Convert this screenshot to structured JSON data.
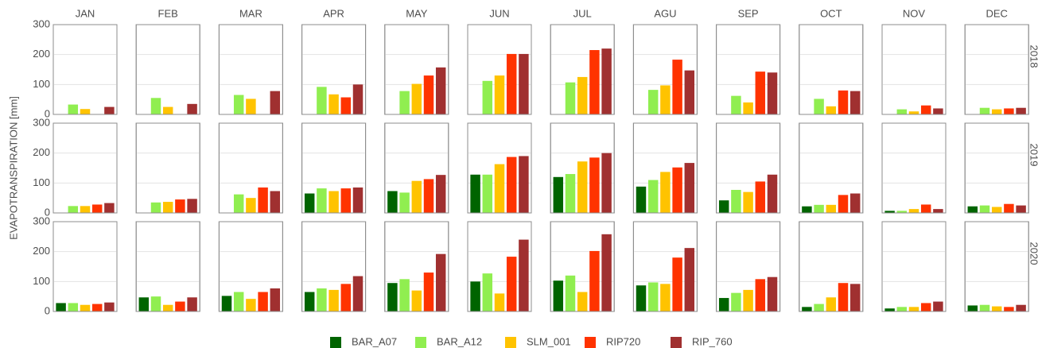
{
  "chart_data": {
    "type": "bar",
    "ylabel": "EVAPOTRANSPIRATION [mm]",
    "columns": [
      "JAN",
      "FEB",
      "MAR",
      "APR",
      "MAY",
      "JUN",
      "JUL",
      "AGU",
      "SEP",
      "OCT",
      "NOV",
      "DEC"
    ],
    "rows": [
      "2018",
      "2019",
      "2020"
    ],
    "ylim": [
      0,
      300
    ],
    "yticks": [
      0,
      100,
      200,
      300
    ],
    "grid": true,
    "legend": "bottom",
    "series": [
      {
        "name": "BAR_A07",
        "color": "#006400",
        "values": [
          [
            null,
            null,
            null,
            null,
            null,
            null,
            null,
            null,
            null,
            null,
            null,
            null
          ],
          [
            null,
            null,
            null,
            65,
            73,
            128,
            120,
            88,
            42,
            22,
            7,
            22
          ],
          [
            28,
            47,
            52,
            65,
            95,
            100,
            103,
            87,
            45,
            15,
            10,
            20
          ]
        ]
      },
      {
        "name": "BAR_A12",
        "color": "#90ee50",
        "values": [
          [
            33,
            55,
            65,
            92,
            78,
            112,
            107,
            82,
            62,
            52,
            17,
            22
          ],
          [
            23,
            35,
            62,
            82,
            68,
            128,
            130,
            110,
            77,
            27,
            7,
            25
          ],
          [
            28,
            50,
            65,
            77,
            108,
            127,
            120,
            97,
            62,
            25,
            15,
            22
          ]
        ]
      },
      {
        "name": "SLM_001",
        "color": "#ffc300",
        "values": [
          [
            18,
            25,
            52,
            67,
            102,
            130,
            125,
            97,
            40,
            27,
            10,
            17
          ],
          [
            23,
            37,
            50,
            73,
            107,
            163,
            172,
            137,
            70,
            27,
            13,
            20
          ],
          [
            22,
            22,
            42,
            72,
            70,
            60,
            65,
            92,
            72,
            47,
            15,
            17
          ]
        ]
      },
      {
        "name": "RIP720",
        "color": "#ff3300",
        "values": [
          [
            null,
            null,
            null,
            57,
            130,
            202,
            215,
            183,
            143,
            80,
            30,
            20
          ],
          [
            28,
            45,
            85,
            82,
            113,
            187,
            185,
            152,
            105,
            60,
            28,
            30
          ],
          [
            25,
            33,
            65,
            92,
            130,
            183,
            202,
            180,
            108,
            95,
            28,
            15
          ]
        ]
      },
      {
        "name": "RIP_760",
        "color": "#a03030",
        "values": [
          [
            25,
            35,
            78,
            100,
            157,
            202,
            220,
            147,
            140,
            78,
            20,
            22
          ],
          [
            33,
            47,
            73,
            85,
            127,
            190,
            200,
            167,
            128,
            65,
            13,
            25
          ],
          [
            30,
            47,
            77,
            118,
            192,
            240,
            258,
            212,
            115,
            92,
            33,
            22
          ]
        ]
      }
    ]
  }
}
